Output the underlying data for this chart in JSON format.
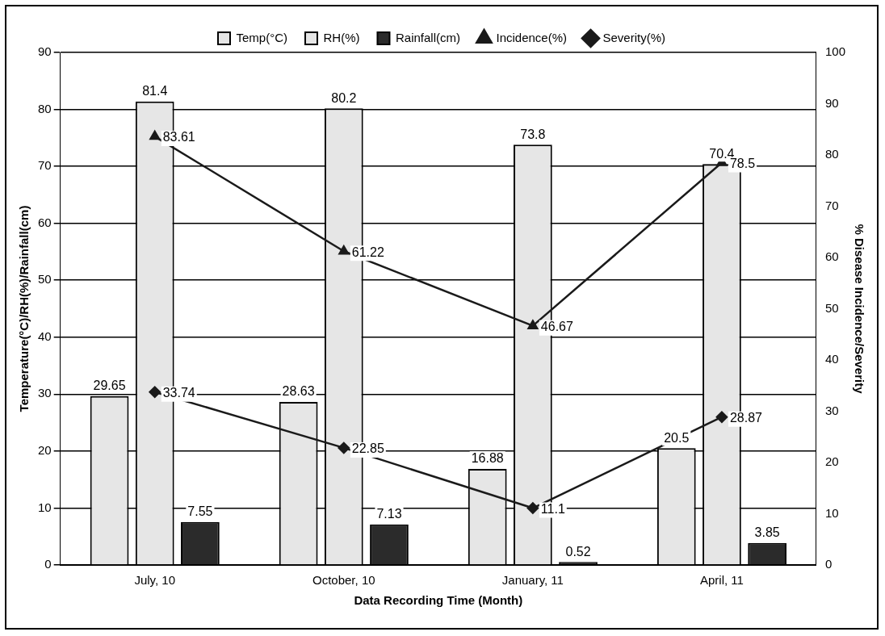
{
  "chart_data": {
    "type": "bar",
    "categories": [
      "July, 10",
      "October, 10",
      "January, 11",
      "April, 11"
    ],
    "series": [
      {
        "name": "Temp(°C)",
        "color": "#e6e6e6",
        "values": [
          29.65,
          28.63,
          16.88,
          20.5
        ]
      },
      {
        "name": "RH(%)",
        "color": "#e6e6e6",
        "values": [
          81.4,
          80.2,
          73.8,
          70.4
        ]
      },
      {
        "name": "Rainfall(cm)",
        "color": "#2b2b2b",
        "values": [
          7.55,
          7.13,
          0.52,
          3.85
        ]
      },
      {
        "name": "Incidence(%)",
        "type": "line",
        "axis": "y2",
        "marker": "triangle",
        "color": "#1a1a1a",
        "values": [
          83.61,
          61.22,
          46.67,
          78.5
        ]
      },
      {
        "name": "Severity(%)",
        "type": "line",
        "axis": "y2",
        "marker": "diamond",
        "color": "#1a1a1a",
        "values": [
          33.74,
          22.85,
          11.1,
          28.87
        ]
      }
    ],
    "xlabel": "Data Recording Time (Month)",
    "ylabel": "Temperature(°C)/RH(%)/Rainfall(cm)",
    "y2label": "% Disease Incidence/Severity",
    "ylim": [
      0,
      90
    ],
    "yticks": [
      0,
      10,
      20,
      30,
      40,
      50,
      60,
      70,
      80,
      90
    ],
    "y2lim": [
      0,
      100
    ],
    "y2ticks": [
      0,
      10,
      20,
      30,
      40,
      50,
      60,
      70,
      80,
      90,
      100
    ],
    "grid": "y",
    "legend": "top",
    "data_labels": true,
    "line_style": "solid"
  }
}
